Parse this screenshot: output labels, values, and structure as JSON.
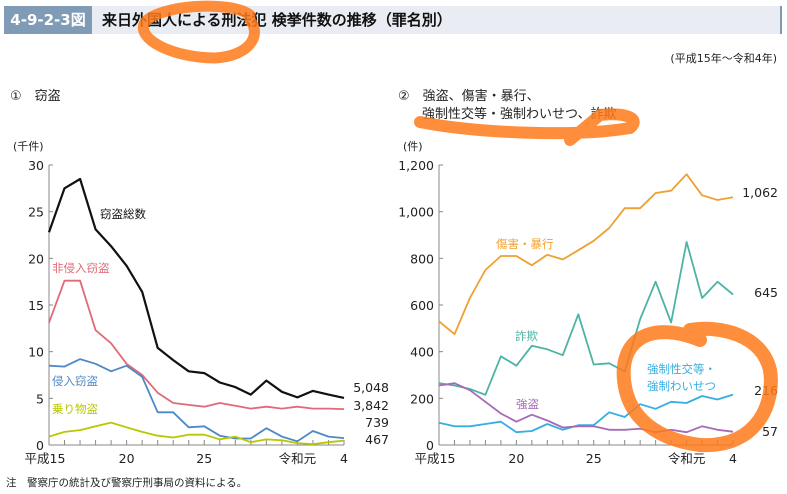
{
  "header": {
    "figure_number": "4-9-2-3図",
    "title": "来日外国人による刑法犯 検挙件数の推移（罪名別）",
    "period": "(平成15年～令和4年)"
  },
  "note": "注　警察庁の統計及び警察庁刑事局の資料による。",
  "colors": {
    "total": "#111111",
    "non_intrusive": "#e06a78",
    "intrusive": "#4f88c6",
    "vehicle": "#b8c800",
    "injury": "#f0a030",
    "fraud": "#4db3a5",
    "sexual": "#35aee0",
    "robbery": "#a56bb8",
    "highlight": "#ff7a1a"
  },
  "chart_data": [
    {
      "type": "line",
      "panel_label": "①　窃盗",
      "ylabel": "(千件)",
      "x": [
        "平成15",
        "16",
        "17",
        "18",
        "19",
        "20",
        "21",
        "22",
        "23",
        "24",
        "25",
        "26",
        "27",
        "28",
        "29",
        "30",
        "令和元",
        "2",
        "3",
        "4"
      ],
      "xtick_labels": [
        "平成15",
        "20",
        "25",
        "令和元",
        "4"
      ],
      "ylim": [
        0,
        30
      ],
      "yticks": [
        0,
        5,
        10,
        15,
        20,
        25,
        30
      ],
      "series": [
        {
          "name": "窃盗総数",
          "color_key": "total",
          "end_label": "5,048",
          "values": [
            22.8,
            27.5,
            28.5,
            23.1,
            21.3,
            19.2,
            16.4,
            10.4,
            9.1,
            7.9,
            7.7,
            6.7,
            6.2,
            5.4,
            6.9,
            5.7,
            5.1,
            5.8,
            5.4,
            5.048
          ]
        },
        {
          "name": "非侵入窃盗",
          "color_key": "non_intrusive",
          "end_label": "3,842",
          "values": [
            13.1,
            17.6,
            17.6,
            12.3,
            10.9,
            8.7,
            7.5,
            5.6,
            4.5,
            4.3,
            4.1,
            4.5,
            4.2,
            3.9,
            4.1,
            3.9,
            4.1,
            3.9,
            3.9,
            3.842
          ]
        },
        {
          "name": "侵入窃盗",
          "color_key": "intrusive",
          "end_label": "739",
          "values": [
            8.5,
            8.4,
            9.2,
            8.7,
            7.9,
            8.5,
            7.3,
            3.5,
            3.5,
            1.9,
            2.0,
            1.0,
            0.7,
            0.7,
            1.8,
            0.9,
            0.4,
            1.5,
            0.9,
            0.739
          ]
        },
        {
          "name": "乗り物盗",
          "color_key": "vehicle",
          "end_label": "467",
          "values": [
            0.9,
            1.4,
            1.6,
            2.0,
            2.4,
            1.9,
            1.4,
            1.0,
            0.8,
            1.1,
            1.1,
            0.6,
            0.9,
            0.3,
            0.6,
            0.5,
            0.2,
            0.1,
            0.3,
            0.467
          ]
        }
      ]
    },
    {
      "type": "line",
      "panel_label_line1": "②　強盗、傷害・暴行、",
      "panel_label_line2": "強制性交等・強制わいせつ、詐欺",
      "ylabel": "(件)",
      "x": [
        "平成15",
        "16",
        "17",
        "18",
        "19",
        "20",
        "21",
        "22",
        "23",
        "24",
        "25",
        "26",
        "27",
        "28",
        "29",
        "30",
        "令和元",
        "2",
        "3",
        "4"
      ],
      "xtick_labels": [
        "平成15",
        "20",
        "25",
        "令和元",
        "4"
      ],
      "ylim": [
        0,
        1200
      ],
      "yticks": [
        0,
        200,
        400,
        600,
        800,
        "1,000",
        "1,200"
      ],
      "series": [
        {
          "name": "傷害・暴行",
          "color_key": "injury",
          "end_label": "1,062",
          "values": [
            530,
            475,
            630,
            750,
            810,
            810,
            770,
            815,
            795,
            835,
            875,
            930,
            1015,
            1015,
            1080,
            1090,
            1160,
            1070,
            1050,
            1062
          ]
        },
        {
          "name": "詐欺",
          "color_key": "fraud",
          "end_label": "645",
          "values": [
            265,
            255,
            240,
            215,
            380,
            340,
            425,
            410,
            385,
            560,
            345,
            350,
            315,
            540,
            700,
            525,
            870,
            630,
            700,
            645
          ]
        },
        {
          "name": "強制性交等・強制わいせつ",
          "name_line1": "強制性交等・",
          "name_line2": "強制わいせつ",
          "color_key": "sexual",
          "end_label": "216",
          "values": [
            95,
            80,
            80,
            90,
            100,
            55,
            60,
            90,
            65,
            85,
            85,
            140,
            120,
            175,
            155,
            185,
            180,
            210,
            195,
            216
          ]
        },
        {
          "name": "強盗",
          "color_key": "robbery",
          "end_label": "57",
          "values": [
            255,
            265,
            235,
            185,
            135,
            100,
            130,
            105,
            75,
            80,
            80,
            65,
            65,
            70,
            55,
            65,
            55,
            80,
            65,
            57
          ]
        }
      ]
    }
  ]
}
